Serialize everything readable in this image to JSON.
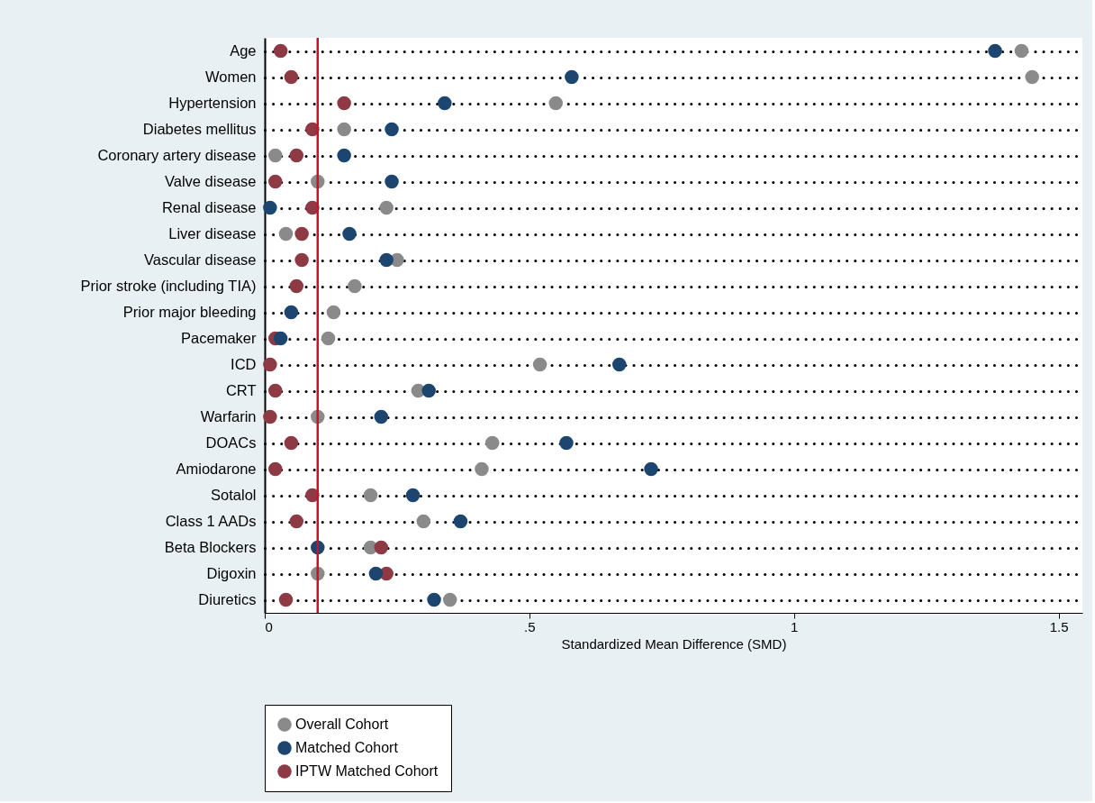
{
  "chart_data": {
    "type": "scatter",
    "orientation": "horizontal",
    "xlabel": "Standardized Mean Difference (SMD)",
    "categories": [
      "Age",
      "Women",
      "Hypertension",
      "Diabetes mellitus",
      "Coronary artery disease",
      "Valve disease",
      "Renal disease",
      "Liver disease",
      "Vascular disease",
      "Prior stroke (including TIA)",
      "Prior major bleeding",
      "Pacemaker",
      "ICD",
      "CRT",
      "Warfarin",
      "DOACs",
      "Amiodarone",
      "Sotalol",
      "Class 1 AADs",
      "Beta Blockers",
      "Digoxin",
      "Diuretics"
    ],
    "series": [
      {
        "name": "Overall Cohort",
        "color": "#8a8a8a",
        "values": [
          1.43,
          1.45,
          0.55,
          0.15,
          0.02,
          0.1,
          0.23,
          0.04,
          0.25,
          0.17,
          0.13,
          0.12,
          0.52,
          0.29,
          0.1,
          0.43,
          0.41,
          0.2,
          0.3,
          0.2,
          0.1,
          0.35
        ]
      },
      {
        "name": "Matched Cohort",
        "color": "#1c4670",
        "values": [
          1.38,
          0.58,
          0.34,
          0.24,
          0.15,
          0.24,
          0.01,
          0.16,
          0.23,
          null,
          0.05,
          0.03,
          0.67,
          0.31,
          0.22,
          0.57,
          0.73,
          0.28,
          0.37,
          0.1,
          0.21,
          0.32
        ]
      },
      {
        "name": "IPTW Matched Cohort",
        "color": "#8e3a44",
        "values": [
          0.03,
          0.05,
          0.15,
          0.09,
          0.06,
          0.02,
          0.09,
          0.07,
          0.07,
          0.06,
          null,
          0.02,
          0.01,
          0.02,
          0.01,
          0.05,
          0.02,
          0.09,
          0.06,
          0.22,
          0.23,
          0.04
        ]
      }
    ],
    "xlim": [
      0,
      1.545
    ],
    "xticks": [
      {
        "value": 0,
        "label": "0"
      },
      {
        "value": 0.5,
        "label": ".5"
      },
      {
        "value": 1,
        "label": "1"
      },
      {
        "value": 1.5,
        "label": "1.5"
      }
    ],
    "ref_lines": [
      {
        "axis": "x",
        "value": 0.1,
        "color": "#c8102e"
      }
    ],
    "grid": "y",
    "legend": "bottom",
    "marker": "circle"
  }
}
